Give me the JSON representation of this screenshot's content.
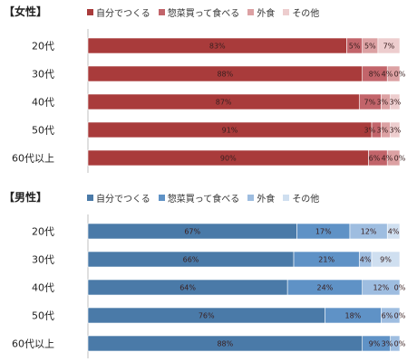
{
  "chart_data": [
    {
      "type": "bar",
      "orientation": "horizontal",
      "stacked": true,
      "title": "【女性】",
      "categories": [
        "20代",
        "30代",
        "40代",
        "50代",
        "60代以上"
      ],
      "series": [
        {
          "name": "自分でつくる",
          "color": "#a93b3b",
          "values": [
            83,
            88,
            87,
            91,
            90
          ],
          "labels": [
            "83%",
            "88%",
            "87%",
            "91%",
            "90%"
          ]
        },
        {
          "name": "惣菜買って食べる",
          "color": "#c2646a",
          "values": [
            5,
            8,
            7,
            3,
            6
          ],
          "labels": [
            "5%",
            "8%",
            "7%",
            "3%",
            "6%"
          ]
        },
        {
          "name": "外食",
          "color": "#dca1a3",
          "values": [
            5,
            4,
            3,
            3,
            4
          ],
          "labels": [
            "5%",
            "4%",
            "3%",
            "3%",
            "4%"
          ]
        },
        {
          "name": "その他",
          "color": "#edcdce",
          "values": [
            7,
            0,
            3,
            3,
            0
          ],
          "labels": [
            "7%",
            "0%",
            "3%",
            "3%",
            "0%"
          ]
        }
      ],
      "xlim": [
        0,
        100
      ]
    },
    {
      "type": "bar",
      "orientation": "horizontal",
      "stacked": true,
      "title": "【男性】",
      "categories": [
        "20代",
        "30代",
        "40代",
        "50代",
        "60代以上"
      ],
      "series": [
        {
          "name": "自分でつくる",
          "color": "#4a7aa8",
          "values": [
            67,
            66,
            64,
            76,
            88
          ],
          "labels": [
            "67%",
            "66%",
            "64%",
            "76%",
            "88%"
          ]
        },
        {
          "name": "惣菜買って食べる",
          "color": "#5f92c6",
          "values": [
            17,
            21,
            24,
            18,
            9
          ],
          "labels": [
            "17%",
            "21%",
            "24%",
            "18%",
            "9%"
          ]
        },
        {
          "name": "外食",
          "color": "#9ebde0",
          "values": [
            12,
            4,
            12,
            6,
            3
          ],
          "labels": [
            "12%",
            "4%",
            "12%",
            "6%",
            "3%"
          ]
        },
        {
          "name": "その他",
          "color": "#cfdff0",
          "values": [
            4,
            9,
            0,
            0,
            0
          ],
          "labels": [
            "4%",
            "9%",
            "0%",
            "0%",
            "0%"
          ]
        }
      ],
      "xlim": [
        0,
        100
      ]
    }
  ]
}
